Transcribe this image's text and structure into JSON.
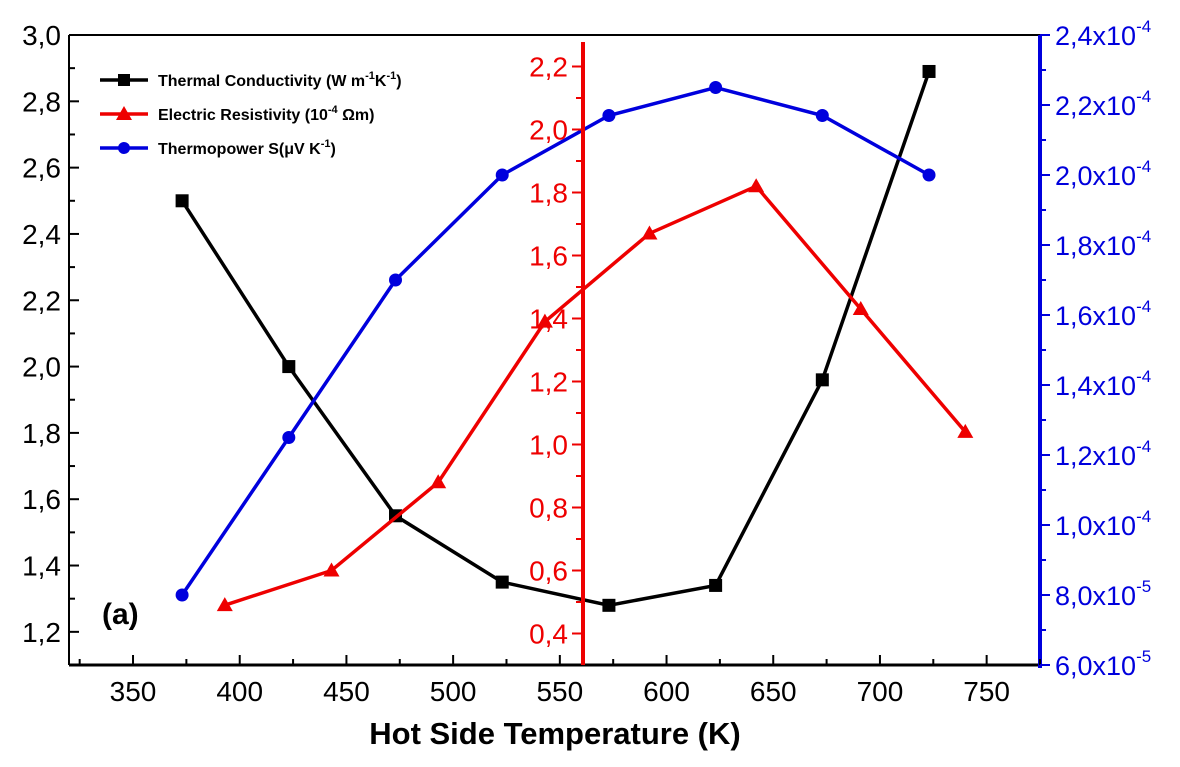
{
  "chart_data": {
    "type": "line",
    "panel_label": "(a)",
    "xlabel": "Hot Side Temperature (K)",
    "xlim": [
      320,
      775
    ],
    "x_ticks": [
      350,
      400,
      450,
      500,
      550,
      600,
      650,
      700,
      750
    ],
    "x_tick_labels": [
      "350",
      "400",
      "450",
      "500",
      "550",
      "600",
      "650",
      "700",
      "750"
    ],
    "grid": false,
    "legend_position": "top-left",
    "axes": {
      "left": {
        "ylim": [
          1.1,
          3.0
        ],
        "ticks": [
          1.2,
          1.4,
          1.6,
          1.8,
          2.0,
          2.2,
          2.4,
          2.6,
          2.8,
          3.0
        ],
        "tick_labels": [
          "1,2",
          "1,4",
          "1,6",
          "1,8",
          "2,0",
          "2,2",
          "2,4",
          "2,6",
          "2,8",
          "3,0"
        ],
        "color": "#000000"
      },
      "middle": {
        "ylim": [
          0.3,
          2.3
        ],
        "ticks": [
          0.4,
          0.6,
          0.8,
          1.0,
          1.2,
          1.4,
          1.6,
          1.8,
          2.0,
          2.2
        ],
        "tick_labels": [
          "0,4",
          "0,6",
          "0,8",
          "1,0",
          "1,2",
          "1,4",
          "1,6",
          "1,8",
          "2,0",
          "2,2"
        ],
        "color": "#ee0000"
      },
      "right": {
        "ylim": [
          6e-05,
          0.00024
        ],
        "ticks": [
          6e-05,
          8e-05,
          0.0001,
          0.00012,
          0.00014,
          0.00016,
          0.00018,
          0.0002,
          0.00022,
          0.00024
        ],
        "tick_mantissas": [
          "6,0x10",
          "8,0x10",
          "1,0x10",
          "1,2x10",
          "1,4x10",
          "1,6x10",
          "1,8x10",
          "2,0x10",
          "2,2x10",
          "2,4x10"
        ],
        "tick_exponents": [
          "-5",
          "-5",
          "-4",
          "-4",
          "-4",
          "-4",
          "-4",
          "-4",
          "-4",
          "-4"
        ],
        "color": "#0000dd"
      }
    },
    "series": [
      {
        "name_parts": [
          "Thermal Conductivity (W m",
          "-1",
          "K",
          "-1",
          ")"
        ],
        "axis": "left",
        "color": "#000000",
        "marker": "square",
        "x": [
          373,
          423,
          473,
          523,
          573,
          623,
          673,
          723
        ],
        "y": [
          2.5,
          2.0,
          1.55,
          1.35,
          1.28,
          1.34,
          1.96,
          2.89
        ]
      },
      {
        "name_parts": [
          "Electric Resistivity (10",
          "-4",
          " Ωm)"
        ],
        "axis": "middle",
        "color": "#ee0000",
        "marker": "triangle",
        "x": [
          393,
          443,
          493,
          543,
          592,
          642,
          691,
          740
        ],
        "y": [
          0.49,
          0.6,
          0.88,
          1.39,
          1.67,
          1.82,
          1.43,
          1.04
        ]
      },
      {
        "name_parts": [
          "Thermopower S(μV K",
          "-1",
          ")"
        ],
        "axis": "right",
        "color": "#0000dd",
        "marker": "circle",
        "x": [
          373,
          423,
          473,
          523,
          573,
          623,
          673,
          723
        ],
        "y": [
          8e-05,
          0.000125,
          0.00017,
          0.0002,
          0.000217,
          0.000225,
          0.000217,
          0.0002
        ]
      }
    ]
  }
}
